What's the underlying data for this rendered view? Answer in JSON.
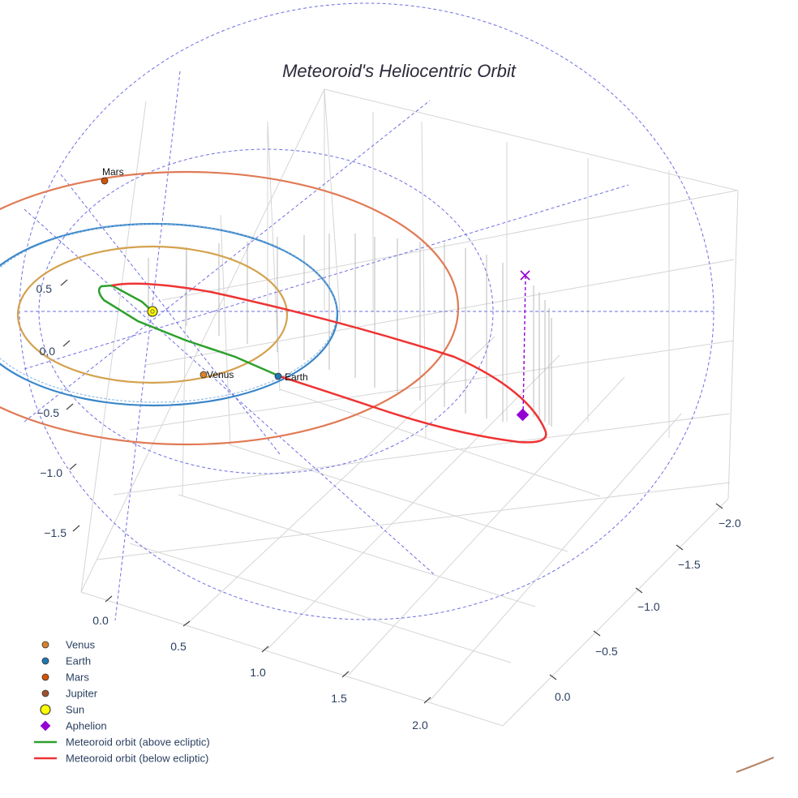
{
  "chart_data": {
    "type": "scatter3d",
    "title": "Meteoroid's Heliocentric Orbit",
    "axes": {
      "x": {
        "ticks": [
          "2.0",
          "1.5",
          "1.0",
          "0.5",
          "0.0"
        ]
      },
      "y": {
        "ticks": [
          "−2.0",
          "−1.5",
          "−1.0",
          "−0.5",
          "0.0"
        ]
      },
      "z": {
        "ticks": [
          "0.5",
          "0.0",
          "−0.5",
          "−1.0",
          "−1.5"
        ]
      }
    },
    "planets": [
      {
        "name": "Venus",
        "semi_major_au": 0.72,
        "color": "#d4a24f",
        "marker_color": "#d9822b",
        "label": "Venus"
      },
      {
        "name": "Earth",
        "semi_major_au": 1.0,
        "color": "#3a86c8",
        "marker_color": "#1f77b4",
        "label": "Earth"
      },
      {
        "name": "Mars",
        "semi_major_au": 1.52,
        "color": "#e07a55",
        "marker_color": "#d35400",
        "label": "Mars"
      },
      {
        "name": "Jupiter",
        "semi_major_au": 5.2,
        "color": "#b5866a",
        "marker_color": "#a0522d",
        "label": ""
      }
    ],
    "sun": {
      "name": "Sun",
      "color": "#ffff00"
    },
    "aphelion": {
      "name": "Aphelion",
      "color": "#9400d3",
      "marker": "x"
    },
    "meteoroid": {
      "above": {
        "name": "Meteoroid orbit (above ecliptic)",
        "color": "#2ca02c"
      },
      "below": {
        "name": "Meteoroid orbit (below ecliptic)",
        "color": "#ee3333"
      }
    },
    "legend": [
      {
        "label": "Venus",
        "symbol": "dot",
        "color": "#d9822b"
      },
      {
        "label": "Earth",
        "symbol": "dot",
        "color": "#1f77b4"
      },
      {
        "label": "Mars",
        "symbol": "dot",
        "color": "#d35400"
      },
      {
        "label": "Jupiter",
        "symbol": "dot",
        "color": "#a0522d"
      },
      {
        "label": "Sun",
        "symbol": "sun",
        "color": "#ffff00"
      },
      {
        "label": "Aphelion",
        "symbol": "diamond",
        "color": "#9400d3"
      },
      {
        "label": "Meteoroid orbit (above ecliptic)",
        "symbol": "line",
        "color": "#2ca02c"
      },
      {
        "label": "Meteoroid orbit (below ecliptic)",
        "symbol": "line",
        "color": "#ee3333"
      }
    ]
  }
}
